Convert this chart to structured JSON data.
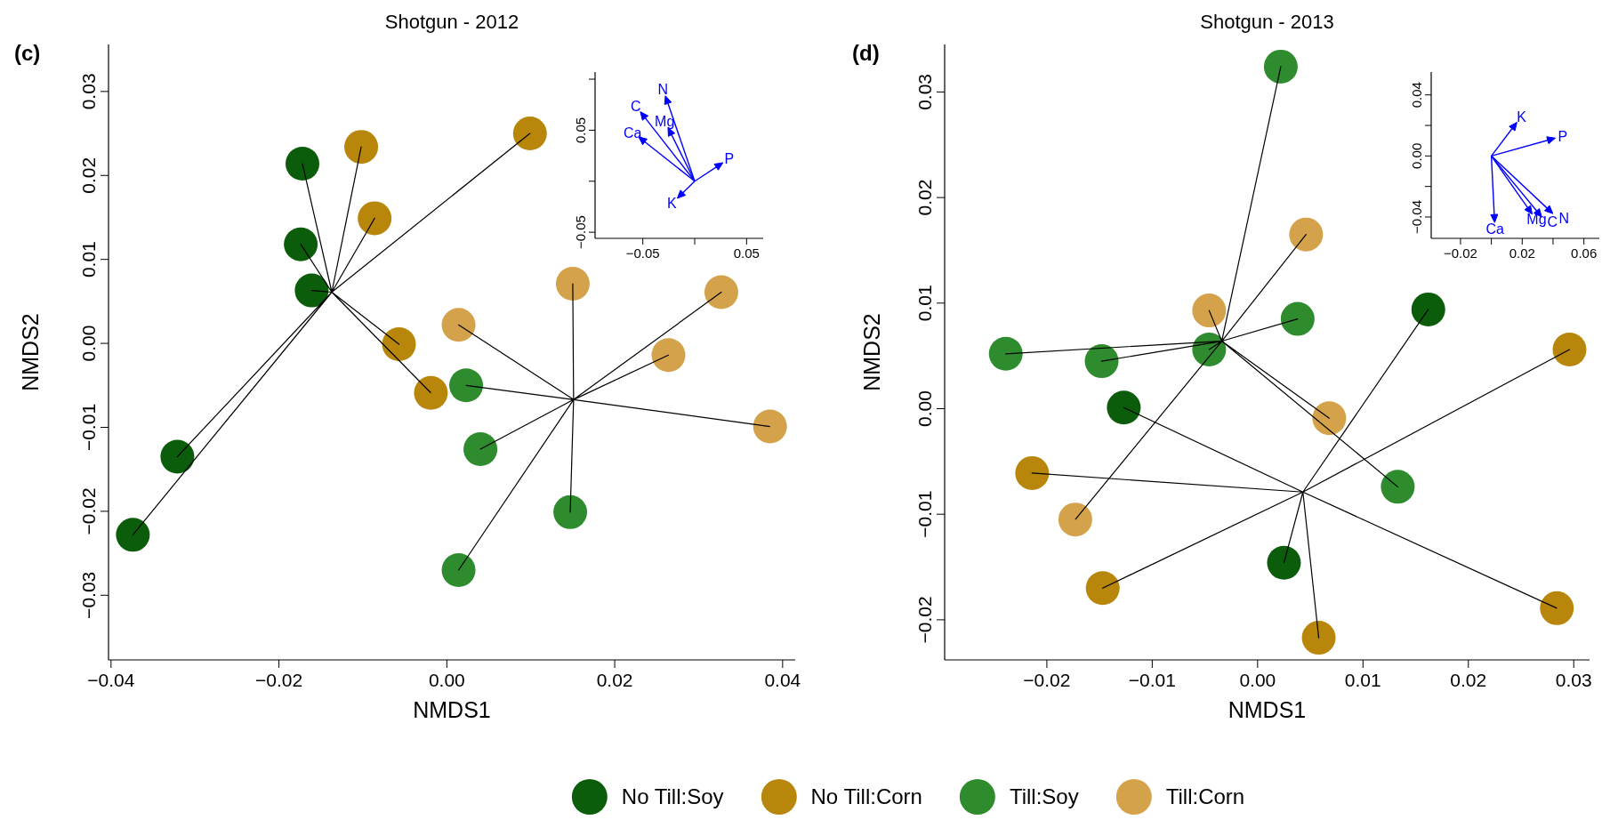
{
  "chart_data": [
    {
      "type": "scatter",
      "title": "Shotgun - 2012",
      "xlabel": "NMDS1",
      "ylabel": "NMDS2",
      "annotations": [
        "(c)"
      ],
      "marker": "circle",
      "legend": "bottom",
      "xlim": [
        -0.0403,
        0.0415
      ],
      "ylim": [
        -0.0377,
        0.0356
      ],
      "xticks": [
        {
          "value": -0.04,
          "label": "−0.04"
        },
        {
          "value": -0.02,
          "label": "−0.02"
        },
        {
          "value": 0,
          "label": "0.00"
        },
        0.02,
        0.04
      ],
      "yticks": [
        {
          "value": -0.03,
          "label": "−0.03"
        },
        {
          "value": -0.02,
          "label": "−0.02"
        },
        {
          "value": -0.01,
          "label": "−0.01"
        },
        {
          "value": 0,
          "label": "0.00"
        },
        0.01,
        0.02,
        0.03
      ],
      "series": [
        {
          "name": "No Till:Soy",
          "type": "scatter",
          "color": "#0b5d0b",
          "x": [
            -0.0172,
            -0.0174,
            -0.0161,
            -0.0321,
            -0.0374
          ],
          "values": [
            0.0214,
            0.0118,
            0.0063,
            -0.0135,
            -0.0228
          ]
        },
        {
          "name": "No Till:Corn",
          "type": "scatter",
          "color": "#b8860b",
          "x": [
            -0.0102,
            -0.0086,
            0.0099,
            -0.0057,
            -0.0019
          ],
          "values": [
            0.0234,
            0.0149,
            0.025,
            -0.0001,
            -0.0059
          ]
        },
        {
          "name": "Till:Soy",
          "type": "scatter",
          "color": "#2e8b2e",
          "x": [
            0.0023,
            0.004,
            0.0147,
            0.0014
          ],
          "values": [
            -0.005,
            -0.0126,
            -0.0201,
            -0.027
          ]
        },
        {
          "name": "Till:Corn",
          "type": "scatter",
          "color": "#d4a24a",
          "x": [
            0.015,
            0.0014,
            0.0327,
            0.0264,
            0.0385
          ],
          "values": [
            0.0071,
            0.0022,
            0.0061,
            -0.0014,
            -0.0099
          ]
        },
        {
          "type": "line",
          "marker": "none",
          "color": "#000000",
          "x": [
            -0.0137,
            -0.0172,
            -0.0137,
            -0.0174,
            -0.0137,
            -0.0161,
            -0.0137,
            -0.0321,
            -0.0137,
            -0.0374,
            -0.0137,
            -0.0102,
            -0.0137,
            -0.0086,
            -0.0137,
            0.0099,
            -0.0137,
            -0.0057,
            -0.0137,
            -0.0019
          ],
          "values": [
            0.0061,
            0.0214,
            0.0061,
            0.0118,
            0.0061,
            0.0063,
            0.0061,
            -0.0135,
            0.0061,
            -0.0228,
            0.0061,
            0.0234,
            0.0061,
            0.0149,
            0.0061,
            0.025,
            0.0061,
            -0.0001,
            0.0061,
            -0.0059
          ]
        },
        {
          "type": "line",
          "marker": "none",
          "color": "#000000",
          "x": [
            0.0151,
            0.0023,
            0.0151,
            0.004,
            0.0151,
            0.0147,
            0.0151,
            0.0014,
            0.0151,
            0.015,
            0.0151,
            0.0014,
            0.0151,
            0.0327,
            0.0151,
            0.0264,
            0.0151,
            0.0385
          ],
          "values": [
            -0.0067,
            -0.005,
            -0.0067,
            -0.0126,
            -0.0067,
            -0.0201,
            -0.0067,
            -0.027,
            -0.0067,
            0.0071,
            -0.0067,
            0.0022,
            -0.0067,
            0.0061,
            -0.0067,
            -0.0014,
            -0.0067,
            -0.0099
          ]
        }
      ]
    },
    {
      "type": "scatter",
      "marker": "triangle",
      "xlim": [
        -0.096,
        0.066
      ],
      "ylim": [
        -0.056,
        0.107
      ],
      "xticks": [
        {
          "value": -0.05,
          "label": "−0.05"
        },
        {
          "value": 0,
          "label": null
        },
        0.05
      ],
      "yticks": [
        {
          "value": -0.05,
          "label": "−0.05"
        },
        {
          "value": 0,
          "label": null
        },
        0.05,
        {
          "value": 0.1,
          "label": null
        }
      ],
      "series": [
        {
          "color": "#0000ff",
          "x": [
            -0.027,
            -0.05,
            -0.024,
            -0.051,
            0.024,
            -0.014
          ],
          "values": [
            0.08,
            0.065,
            0.049,
            0.041,
            0.016,
            -0.014
          ],
          "value_labels": [
            "N",
            "C",
            "Mg",
            "Ca",
            "P",
            "K"
          ]
        }
      ]
    },
    {
      "type": "scatter",
      "title": "Shotgun - 2013",
      "xlabel": "NMDS1",
      "ylabel": "NMDS2",
      "annotations": [
        "(d)"
      ],
      "marker": "circle",
      "legend": "bottom",
      "xlim": [
        -0.0297,
        0.0315
      ],
      "ylim": [
        -0.0238,
        0.0345
      ],
      "xticks": [
        {
          "value": -0.02,
          "label": "−0.02"
        },
        {
          "value": -0.01,
          "label": "−0.01"
        },
        {
          "value": 0,
          "label": "0.00"
        },
        0.01,
        0.02,
        0.03
      ],
      "yticks": [
        {
          "value": -0.02,
          "label": "−0.02"
        },
        {
          "value": -0.01,
          "label": "−0.01"
        },
        {
          "value": 0,
          "label": "0.00"
        },
        0.01,
        0.02,
        0.03
      ],
      "series": [
        {
          "name": "No Till:Soy",
          "type": "scatter",
          "color": "#0b5d0b",
          "x": [
            0.0162,
            -0.0127,
            0.0025
          ],
          "values": [
            0.0094,
            0.0001,
            -0.0146
          ]
        },
        {
          "name": "No Till:Corn",
          "type": "scatter",
          "color": "#b8860b",
          "x": [
            0.0296,
            -0.0214,
            -0.0147,
            0.0058,
            0.0284
          ],
          "values": [
            0.0056,
            -0.0061,
            -0.017,
            -0.0217,
            -0.0189
          ]
        },
        {
          "name": "Till:Soy",
          "type": "scatter",
          "color": "#2e8b2e",
          "x": [
            0.0022,
            -0.0239,
            -0.0148,
            -0.0046,
            0.0038,
            0.0133
          ],
          "values": [
            0.0324,
            0.0052,
            0.0045,
            0.0056,
            0.0085,
            -0.0074
          ]
        },
        {
          "name": "Till:Corn",
          "type": "scatter",
          "color": "#d4a24a",
          "x": [
            0.0046,
            -0.0046,
            0.0068,
            -0.0173
          ],
          "values": [
            0.0165,
            0.0093,
            -0.0009,
            -0.0105
          ]
        },
        {
          "type": "line",
          "marker": "none",
          "color": "#000000",
          "x": [
            -0.0034,
            0.0022,
            -0.0034,
            -0.0239,
            -0.0034,
            -0.0148,
            -0.0034,
            -0.0046,
            -0.0034,
            0.0038,
            -0.0034,
            0.0133,
            -0.0034,
            0.0046,
            -0.0034,
            -0.0046,
            -0.0034,
            0.0068,
            -0.0034,
            -0.0173
          ],
          "values": [
            0.0064,
            0.0324,
            0.0064,
            0.0052,
            0.0064,
            0.0045,
            0.0064,
            0.0056,
            0.0064,
            0.0085,
            0.0064,
            -0.0074,
            0.0064,
            0.0165,
            0.0064,
            0.0093,
            0.0064,
            -0.0009,
            0.0064,
            -0.0105
          ]
        },
        {
          "type": "line",
          "marker": "none",
          "color": "#000000",
          "x": [
            0.0043,
            0.0162,
            0.0043,
            -0.0127,
            0.0043,
            0.0025,
            0.0043,
            0.0296,
            0.0043,
            -0.0214,
            0.0043,
            -0.0147,
            0.0043,
            0.0058,
            0.0043,
            0.0284
          ],
          "values": [
            -0.0079,
            0.0094,
            -0.0079,
            0.0001,
            -0.0079,
            -0.0146,
            -0.0079,
            0.0056,
            -0.0079,
            -0.0061,
            -0.0079,
            -0.017,
            -0.0079,
            -0.0217,
            -0.0079,
            -0.0189
          ]
        }
      ]
    },
    {
      "type": "scatter",
      "marker": "triangle",
      "xlim": [
        -0.039,
        0.07
      ],
      "ylim": [
        -0.054,
        0.055
      ],
      "xticks": [
        {
          "value": -0.02,
          "label": "−0.02"
        },
        {
          "value": 0,
          "label": null
        },
        0.02,
        {
          "value": 0.04,
          "label": null
        },
        0.06
      ],
      "yticks": [
        {
          "value": -0.04,
          "label": "−0.04"
        },
        {
          "value": -0.02,
          "label": null
        },
        {
          "value": 0,
          "label": "0.00"
        },
        {
          "value": 0.02,
          "label": null
        },
        0.04
      ],
      "series": [
        {
          "color": "#0000ff",
          "x": [
            0.015,
            0.039,
            0.002,
            0.025,
            0.031,
            0.038
          ],
          "values": [
            0.02,
            0.011,
            -0.041,
            -0.036,
            -0.038,
            -0.036
          ],
          "value_labels": [
            "K",
            "P",
            "Ca",
            "Mg",
            "C",
            "N"
          ]
        }
      ]
    }
  ]
}
